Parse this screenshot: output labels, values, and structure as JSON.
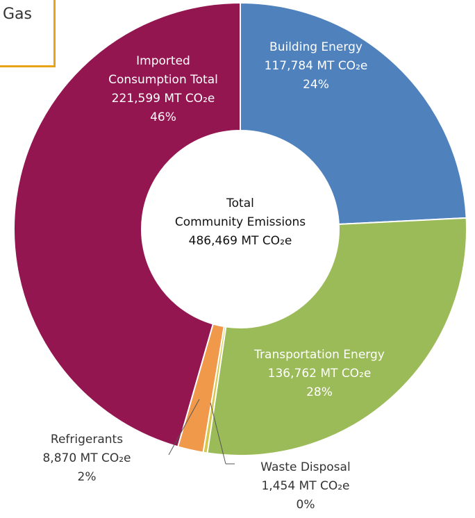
{
  "header_fragment": "Gas",
  "chart_data": {
    "type": "donut",
    "center_label": [
      "Total",
      "Community Emissions"
    ],
    "total": 486469,
    "total_label": "486,469 MT CO₂e",
    "series": [
      {
        "name": "Building Energy",
        "color": "#4f81bd",
        "values": [
          117784
        ],
        "value_labels": [
          "117,784 MT CO₂e"
        ],
        "percent_labels": [
          "24%"
        ]
      },
      {
        "name": "Transportation Energy",
        "color": "#9bbb59",
        "values": [
          136762
        ],
        "value_labels": [
          "136,762 MT CO₂e"
        ],
        "percent_labels": [
          "28%"
        ]
      },
      {
        "name": "Waste Disposal",
        "color": "#d6c94a",
        "values": [
          1454
        ],
        "value_labels": [
          "1,454 MT CO₂e"
        ],
        "percent_labels": [
          "0%"
        ]
      },
      {
        "name": "Refrigerants",
        "color": "#f0994a",
        "values": [
          8870
        ],
        "value_labels": [
          "8,870 MT CO₂e"
        ],
        "percent_labels": [
          "2%"
        ]
      },
      {
        "name": "Imported Consumption Total",
        "color": "#941651",
        "values": [
          221599
        ],
        "value_labels": [
          "221,599 MT CO₂e"
        ],
        "percent_labels": [
          "46%"
        ]
      }
    ]
  }
}
